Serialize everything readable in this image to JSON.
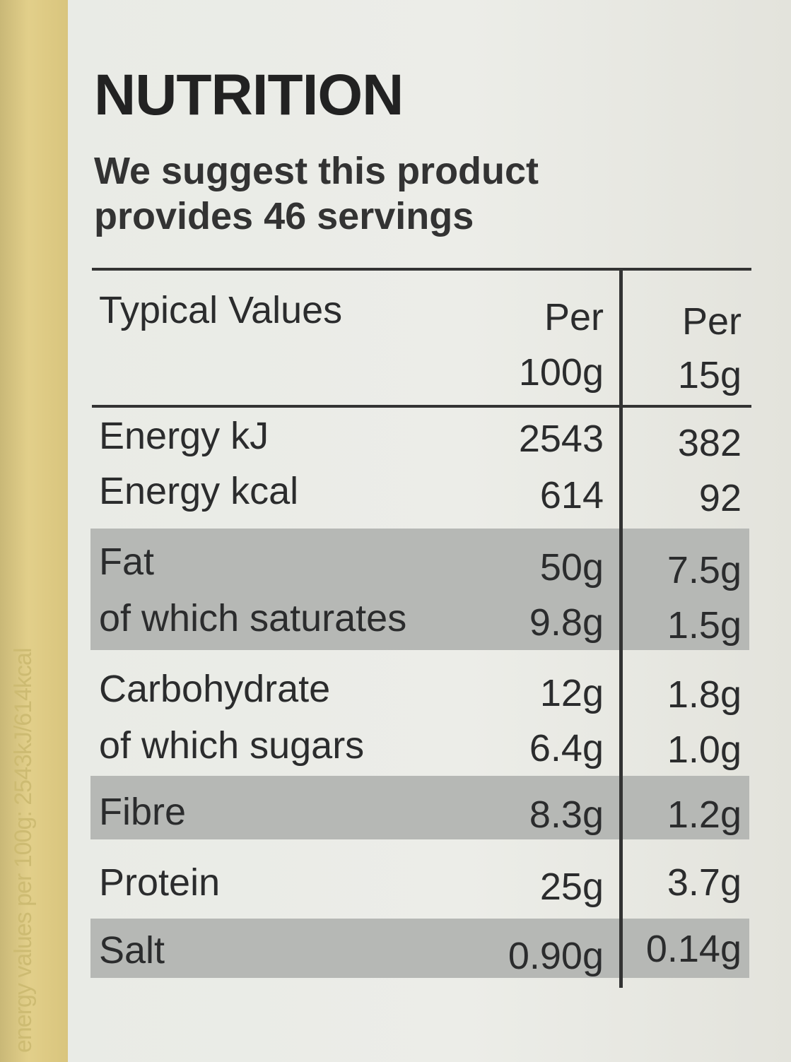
{
  "side_text": "energy values per 100g: 2543kJ/614kcal",
  "title": "NUTRITION",
  "subtitle": "We suggest this product provides 46 servings",
  "header": {
    "typical": "Typical Values",
    "col1_line1": "Per",
    "col1_line2": "100g",
    "col2_line1": "Per",
    "col2_line2": "15g"
  },
  "rows": [
    {
      "name": "Energy kJ",
      "per100": "2543",
      "perServing": "382"
    },
    {
      "name": "Energy kcal",
      "per100": "614",
      "perServing": "92"
    },
    {
      "name": "Fat",
      "per100": "50g",
      "perServing": "7.5g"
    },
    {
      "name": "of which saturates",
      "per100": "9.8g",
      "perServing": "1.5g"
    },
    {
      "name": "Carbohydrate",
      "per100": "12g",
      "perServing": "1.8g"
    },
    {
      "name": "of which sugars",
      "per100": "6.4g",
      "perServing": "1.0g"
    },
    {
      "name": "Fibre",
      "per100": "8.3g",
      "perServing": "1.2g"
    },
    {
      "name": "Protein",
      "per100": "25g",
      "perServing": "3.7g"
    },
    {
      "name": "Salt",
      "per100": "0.90g",
      "perServing": "0.14g"
    }
  ]
}
